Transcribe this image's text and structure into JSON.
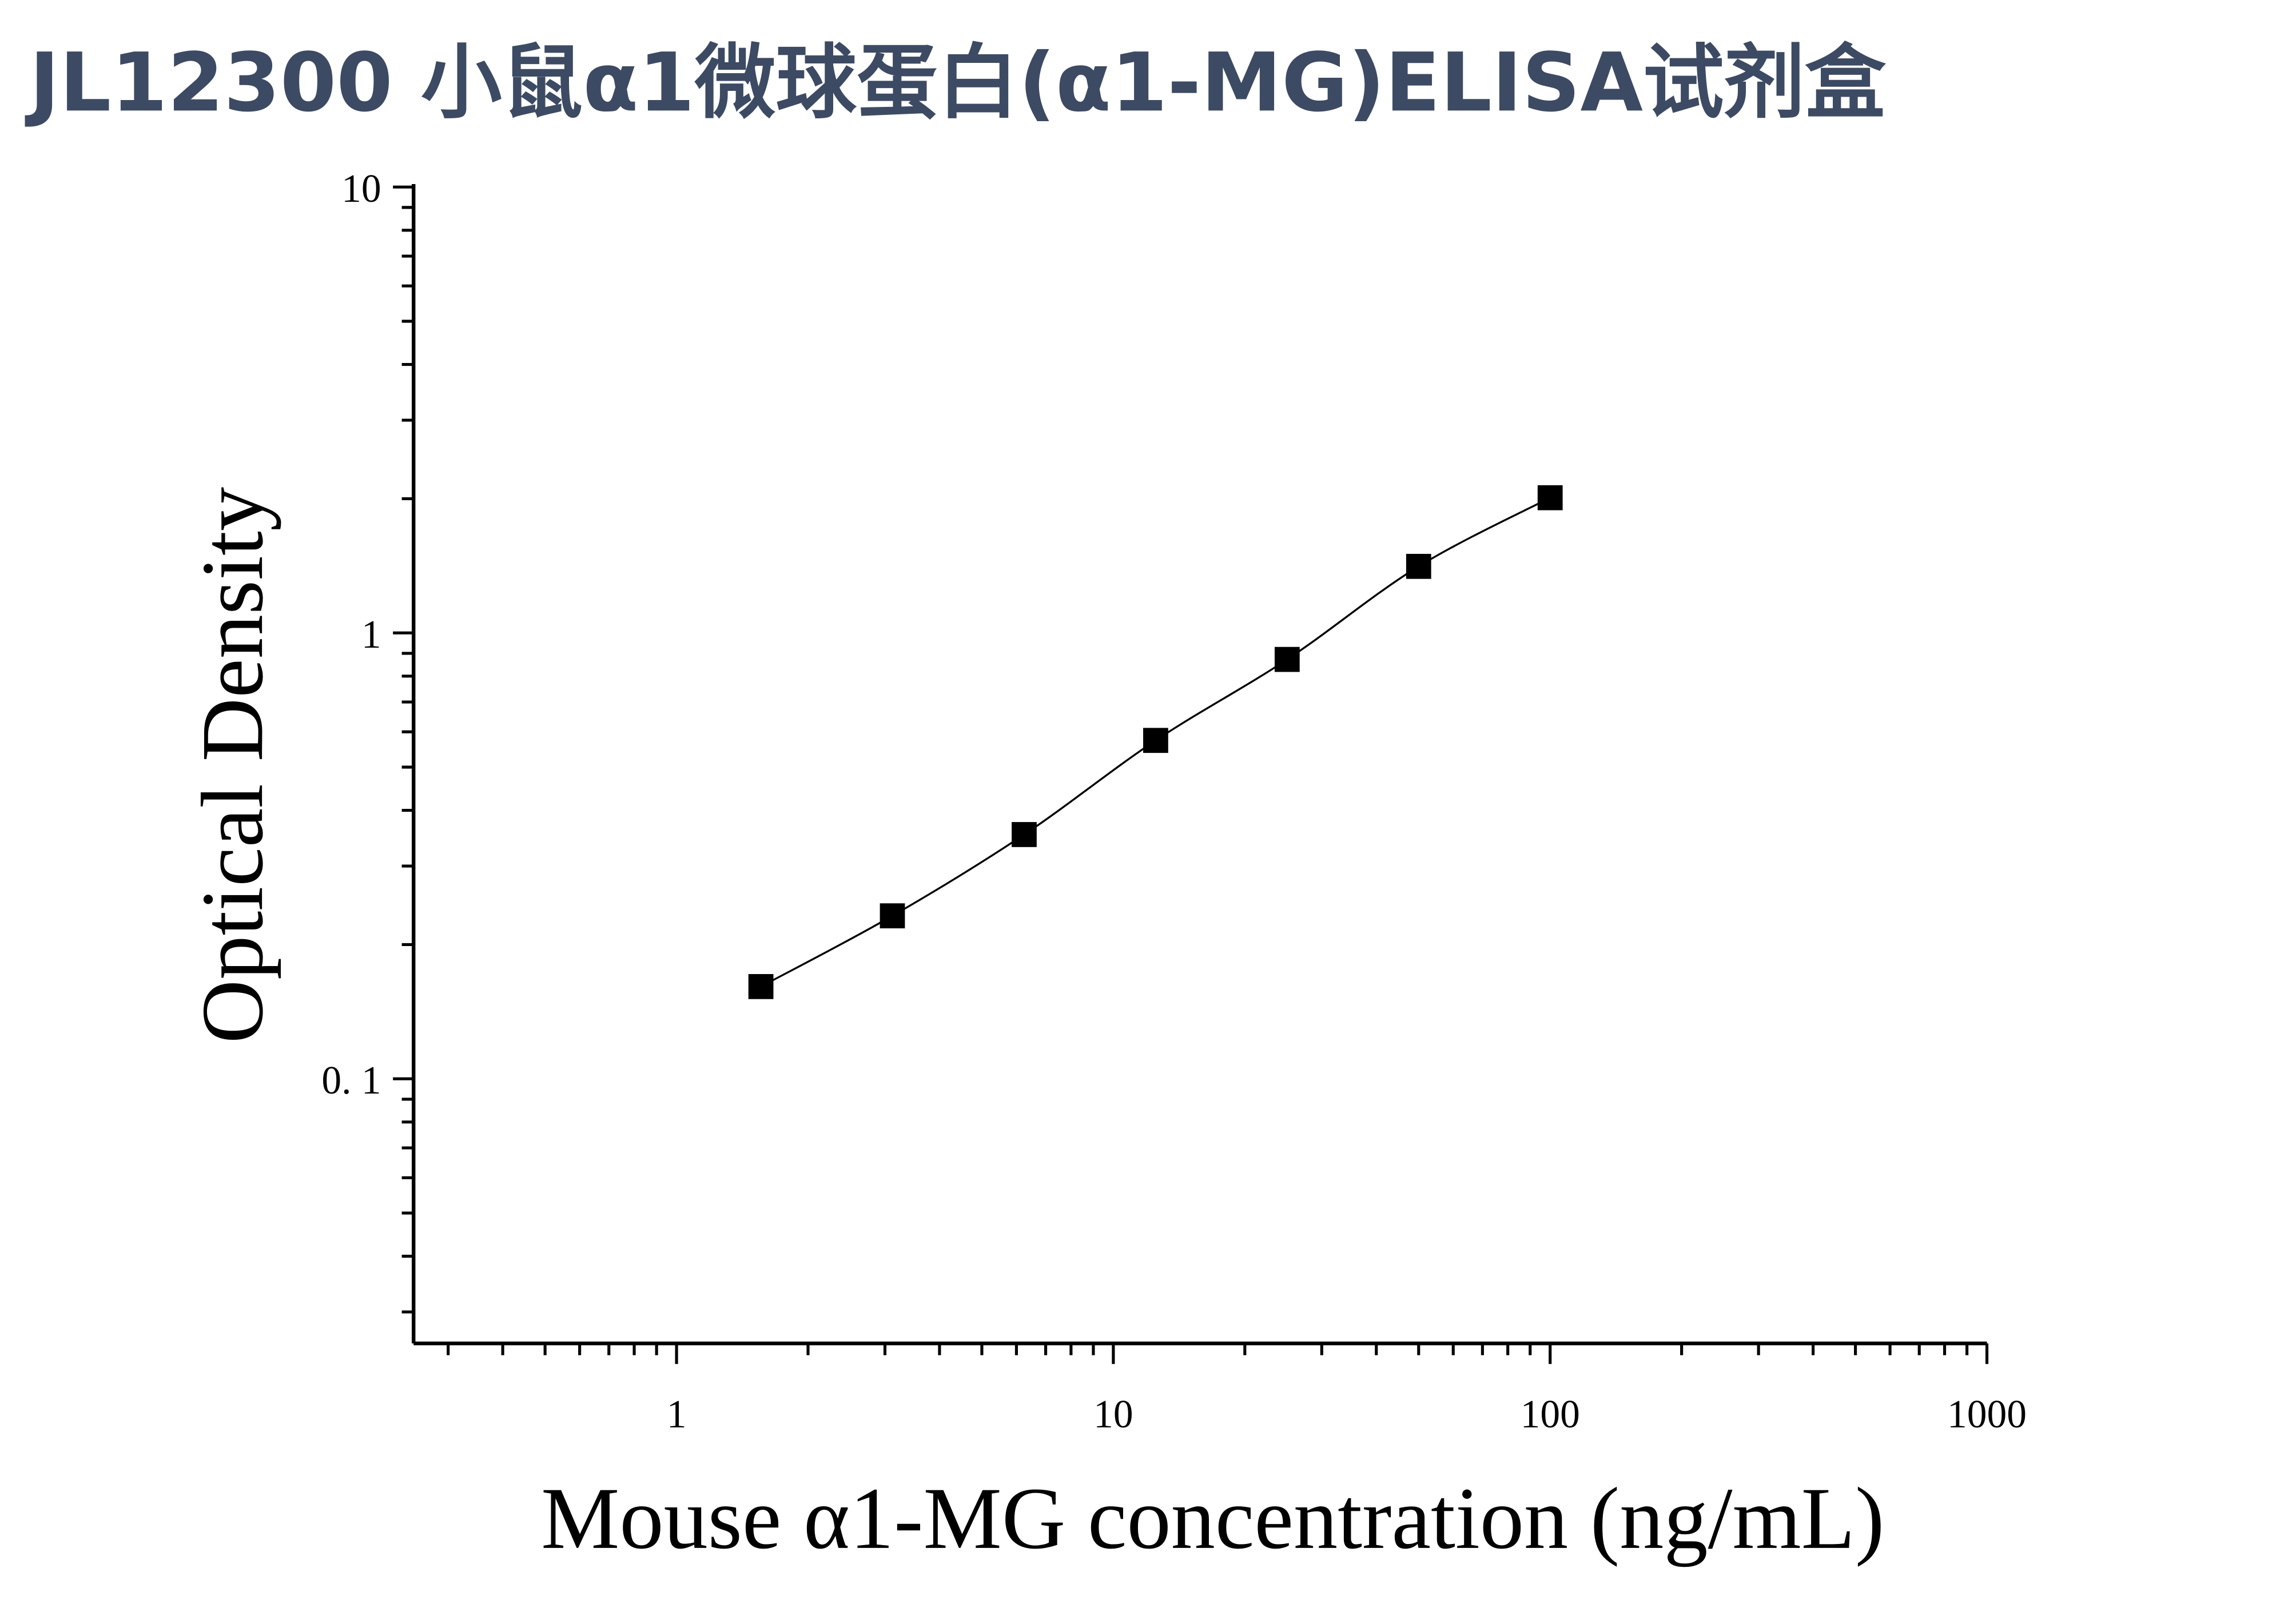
{
  "title": "JL12300 小鼠α1微球蛋白(α1-MG)ELISA试剂盒",
  "chart_data": {
    "type": "scatter",
    "title": "JL12300 小鼠α1微球蛋白(α1-MG)ELISA试剂盒",
    "xlabel": "Mouse α1-MG concentration (ng/mL)",
    "ylabel": "Optical Density",
    "xscale": "log",
    "yscale": "log",
    "xlim": [
      0.25,
      1000
    ],
    "ylim": [
      0.0255,
      10
    ],
    "xticks": [
      {
        "value": 1,
        "label": "1"
      },
      {
        "value": 10,
        "label": "10"
      },
      {
        "value": 100,
        "label": "100"
      },
      {
        "value": 1000,
        "label": "1000"
      }
    ],
    "yticks": [
      {
        "value": 0.1,
        "label": "0. 1"
      },
      {
        "value": 1,
        "label": "1"
      },
      {
        "value": 10,
        "label": "10"
      }
    ],
    "grid": false,
    "marker": "square",
    "fit_curve": true,
    "color": "#000000",
    "title_color": "#3d4a63",
    "x": [
      1.56,
      3.12,
      6.25,
      12.5,
      25,
      50,
      100
    ],
    "y": [
      0.161,
      0.232,
      0.353,
      0.574,
      0.872,
      1.41,
      2.01
    ]
  }
}
